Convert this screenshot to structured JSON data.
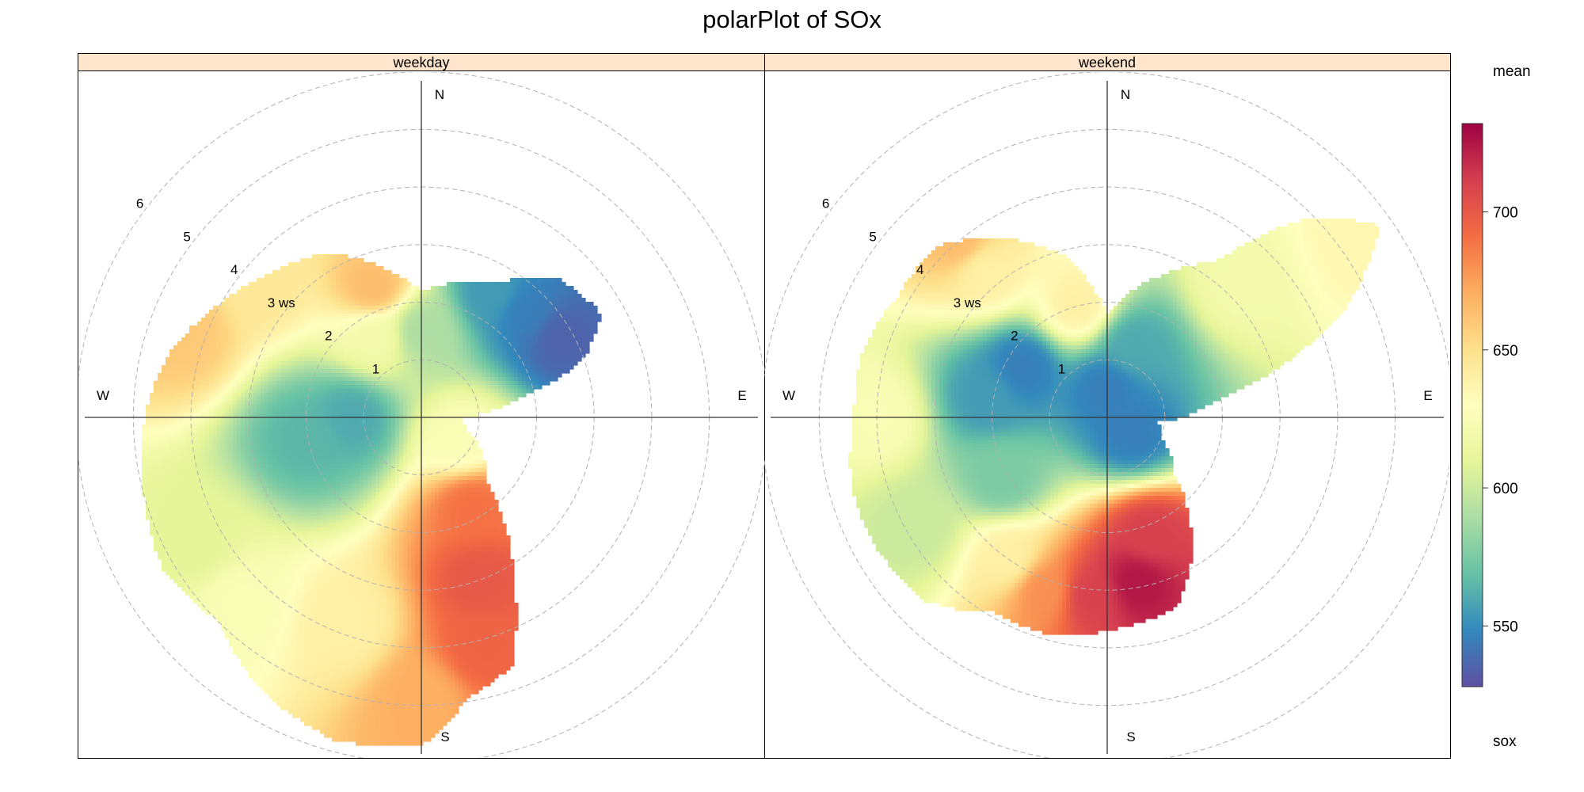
{
  "title": "polarPlot of SOx",
  "panels": [
    {
      "label": "weekday"
    },
    {
      "label": "weekend"
    }
  ],
  "directions": {
    "N": "N",
    "E": "E",
    "S": "S",
    "W": "W"
  },
  "ring_labels": [
    "1",
    "2",
    "3 ws",
    "4",
    "5",
    "6"
  ],
  "colorbar": {
    "top_label": "mean",
    "bottom_label": "sox",
    "ticks": [
      "550",
      "600",
      "650",
      "700"
    ]
  },
  "chart_data": {
    "type": "heatmap",
    "subtype": "polar",
    "pollutant": "sox",
    "statistic": "mean",
    "radial_variable": "ws",
    "radial_range": [
      0,
      6.6
    ],
    "ring_values": [
      1,
      2,
      3,
      4,
      5,
      6
    ],
    "color_scale": {
      "min": 528,
      "max": 732,
      "ticks": [
        550,
        600,
        650,
        700
      ],
      "palette": [
        "#5E4FA2",
        "#3288BD",
        "#66C2A5",
        "#ABDDA4",
        "#E6F598",
        "#FFFFBF",
        "#FEE08B",
        "#FDAE61",
        "#F46D43",
        "#D53E4F",
        "#9E0142"
      ]
    },
    "panels": [
      {
        "name": "weekday",
        "extent_by_direction_deg": [
          [
            0,
            2.2
          ],
          [
            20,
            2.5
          ],
          [
            30,
            2.7
          ],
          [
            45,
            3.4
          ],
          [
            60,
            3.6
          ],
          [
            70,
            3.0
          ],
          [
            80,
            1.6
          ],
          [
            90,
            0.7
          ],
          [
            105,
            0.8
          ],
          [
            120,
            1.2
          ],
          [
            135,
            1.6
          ],
          [
            150,
            3.2
          ],
          [
            160,
            4.6
          ],
          [
            170,
            4.9
          ],
          [
            180,
            5.7
          ],
          [
            195,
            5.8
          ],
          [
            210,
            5.5
          ],
          [
            225,
            5.0
          ],
          [
            240,
            5.2
          ],
          [
            255,
            5.0
          ],
          [
            270,
            4.8
          ],
          [
            285,
            4.5
          ],
          [
            300,
            4.0
          ],
          [
            315,
            3.6
          ],
          [
            330,
            3.3
          ],
          [
            345,
            2.7
          ]
        ],
        "hotspots": [
          {
            "dir": 45,
            "ws": 2.6,
            "mean": 545
          },
          {
            "dir": 60,
            "ws": 2.8,
            "mean": 535
          },
          {
            "dir": 30,
            "ws": 2.5,
            "mean": 555
          },
          {
            "dir": 270,
            "ws": 1.2,
            "mean": 560
          },
          {
            "dir": 260,
            "ws": 2.0,
            "mean": 565
          },
          {
            "dir": 120,
            "ws": 0.8,
            "mean": 625
          },
          {
            "dir": 150,
            "ws": 1.8,
            "mean": 690
          },
          {
            "dir": 160,
            "ws": 3.0,
            "mean": 700
          },
          {
            "dir": 165,
            "ws": 4.1,
            "mean": 695
          },
          {
            "dir": 180,
            "ws": 4.9,
            "mean": 670
          },
          {
            "dir": 200,
            "ws": 3.8,
            "mean": 640
          },
          {
            "dir": 225,
            "ws": 4.5,
            "mean": 625
          },
          {
            "dir": 240,
            "ws": 4.5,
            "mean": 610
          },
          {
            "dir": 290,
            "ws": 4.4,
            "mean": 660
          },
          {
            "dir": 310,
            "ws": 3.6,
            "mean": 645
          },
          {
            "dir": 340,
            "ws": 2.4,
            "mean": 665
          },
          {
            "dir": 330,
            "ws": 1.6,
            "mean": 620
          },
          {
            "dir": 0,
            "ws": 1.5,
            "mean": 590
          }
        ]
      },
      {
        "name": "weekend",
        "extent_by_direction_deg": [
          [
            0,
            1.8
          ],
          [
            20,
            2.6
          ],
          [
            35,
            3.3
          ],
          [
            45,
            4.9
          ],
          [
            55,
            5.8
          ],
          [
            65,
            4.6
          ],
          [
            80,
            2.0
          ],
          [
            95,
            0.9
          ],
          [
            110,
            1.0
          ],
          [
            130,
            1.5
          ],
          [
            150,
            2.9
          ],
          [
            160,
            3.5
          ],
          [
            170,
            3.6
          ],
          [
            180,
            3.7
          ],
          [
            195,
            3.9
          ],
          [
            210,
            3.9
          ],
          [
            225,
            4.5
          ],
          [
            240,
            4.6
          ],
          [
            255,
            4.6
          ],
          [
            270,
            4.4
          ],
          [
            285,
            4.4
          ],
          [
            300,
            4.2
          ],
          [
            315,
            4.2
          ],
          [
            330,
            3.6
          ],
          [
            345,
            2.9
          ]
        ],
        "hotspots": [
          {
            "dir": 0,
            "ws": 0.5,
            "mean": 545
          },
          {
            "dir": 300,
            "ws": 1.7,
            "mean": 545
          },
          {
            "dir": 280,
            "ws": 2.1,
            "mean": 555
          },
          {
            "dir": 120,
            "ws": 0.5,
            "mean": 545
          },
          {
            "dir": 20,
            "ws": 1.3,
            "mean": 560
          },
          {
            "dir": 240,
            "ws": 2.1,
            "mean": 575
          },
          {
            "dir": 160,
            "ws": 2.2,
            "mean": 710
          },
          {
            "dir": 170,
            "ws": 2.9,
            "mean": 725
          },
          {
            "dir": 185,
            "ws": 3.1,
            "mean": 710
          },
          {
            "dir": 200,
            "ws": 3.2,
            "mean": 680
          },
          {
            "dir": 215,
            "ws": 3.0,
            "mean": 640
          },
          {
            "dir": 45,
            "ws": 3.3,
            "mean": 620
          },
          {
            "dir": 55,
            "ws": 5.3,
            "mean": 635
          },
          {
            "dir": 320,
            "ws": 3.3,
            "mean": 640
          },
          {
            "dir": 320,
            "ws": 4.0,
            "mean": 665
          },
          {
            "dir": 345,
            "ws": 2.0,
            "mean": 640
          },
          {
            "dir": 270,
            "ws": 4.0,
            "mean": 625
          },
          {
            "dir": 240,
            "ws": 3.8,
            "mean": 600
          }
        ]
      }
    ]
  }
}
